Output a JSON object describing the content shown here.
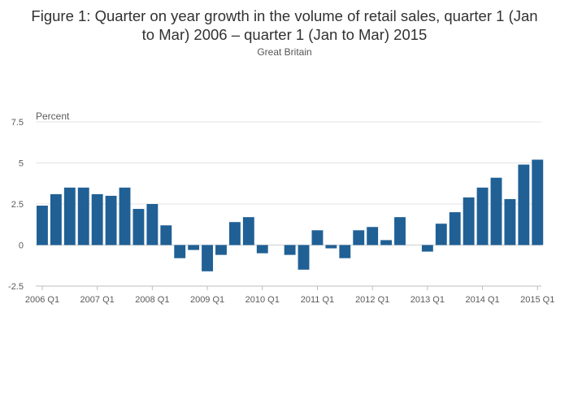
{
  "chart_data": {
    "type": "bar",
    "title_lines": [
      "Figure 1: Quarter on year growth in the volume of retail sales, quarter 1 (Jan",
      "to Mar) 2006 – quarter 1 (Jan to Mar) 2015"
    ],
    "subtitle": "Great Britain",
    "ylabel": "Percent",
    "xlabel": "",
    "ylim": [
      -2.5,
      7.5
    ],
    "yticks": [
      -2.5,
      0,
      2.5,
      5,
      7.5
    ],
    "ytick_labels": [
      "-2.5",
      "0",
      "2.5",
      "5",
      "7.5"
    ],
    "grid": true,
    "legend": "none",
    "bar_color": "#206095",
    "xtick_labels": [
      "2006 Q1",
      "2007 Q1",
      "2008 Q1",
      "2009 Q1",
      "2010 Q1",
      "2011 Q1",
      "2012 Q1",
      "2013 Q1",
      "2014 Q1",
      "2015 Q1"
    ],
    "categories": [
      "2006 Q1",
      "2006 Q2",
      "2006 Q3",
      "2006 Q4",
      "2007 Q1",
      "2007 Q2",
      "2007 Q3",
      "2007 Q4",
      "2008 Q1",
      "2008 Q2",
      "2008 Q3",
      "2008 Q4",
      "2009 Q1",
      "2009 Q2",
      "2009 Q3",
      "2009 Q4",
      "2010 Q1",
      "2010 Q2",
      "2010 Q3",
      "2010 Q4",
      "2011 Q1",
      "2011 Q2",
      "2011 Q3",
      "2011 Q4",
      "2012 Q1",
      "2012 Q2",
      "2012 Q3",
      "2012 Q4",
      "2013 Q1",
      "2013 Q2",
      "2013 Q3",
      "2013 Q4",
      "2014 Q1",
      "2014 Q2",
      "2014 Q3",
      "2014 Q4",
      "2015 Q1"
    ],
    "values": [
      2.4,
      3.1,
      3.5,
      3.5,
      3.1,
      3.0,
      3.5,
      2.2,
      2.5,
      1.2,
      -0.8,
      -0.3,
      -1.6,
      -0.6,
      1.4,
      1.7,
      -0.5,
      0.0,
      -0.6,
      -1.5,
      0.9,
      -0.2,
      -0.8,
      0.9,
      1.1,
      0.3,
      1.7,
      0.0,
      -0.4,
      1.3,
      2.0,
      2.9,
      3.5,
      4.1,
      2.8,
      4.9,
      5.2
    ]
  }
}
